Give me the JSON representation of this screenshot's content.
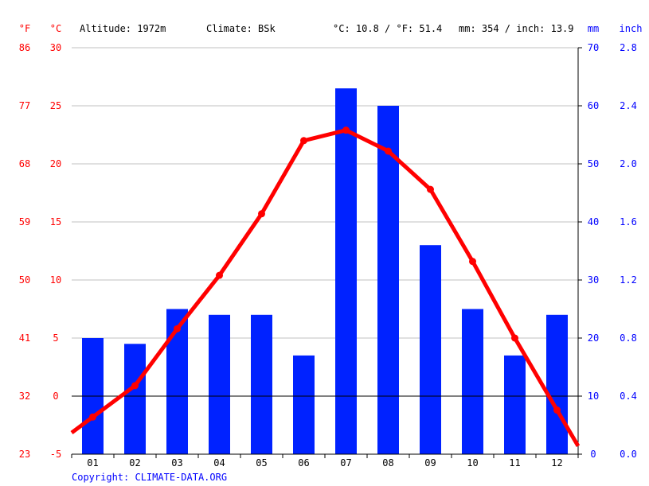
{
  "header": {
    "unit_f": "°F",
    "unit_c": "°C",
    "altitude": "Altitude: 1972m",
    "climate": "Climate: BSk",
    "avg_temp": "°C: 10.8 / °F: 51.4",
    "precip_total": "mm: 354 / inch: 13.9",
    "unit_mm": "mm",
    "unit_inch": "inch"
  },
  "copyright": "Copyright: CLIMATE-DATA.ORG",
  "colors": {
    "temperature": "#ff0000",
    "precipitation": "#0022ff",
    "grid": "#c0c0c0",
    "axis": "#000000"
  },
  "chart_data": {
    "type": "bar",
    "categories": [
      "01",
      "02",
      "03",
      "04",
      "05",
      "06",
      "07",
      "08",
      "09",
      "10",
      "11",
      "12"
    ],
    "series": [
      {
        "type": "bar",
        "axis": "right",
        "unit": "mm",
        "values": [
          20,
          19,
          25,
          24,
          24,
          17,
          63,
          60,
          36,
          25,
          17,
          24
        ]
      },
      {
        "type": "line",
        "axis": "left",
        "unit": "°C",
        "values": [
          -1.8,
          0.9,
          5.8,
          10.4,
          15.7,
          22.0,
          22.9,
          21.1,
          17.8,
          11.6,
          5.0,
          -1.2
        ]
      }
    ],
    "y_left": {
      "unit": "°C",
      "ylim": [
        -5,
        30
      ],
      "ticks": [
        30,
        25,
        20,
        15,
        10,
        5,
        0,
        -5
      ],
      "fahrenheit_ticks": [
        86,
        77,
        68,
        59,
        50,
        41,
        32,
        23
      ]
    },
    "y_right": {
      "unit": "mm",
      "ylim": [
        0,
        70
      ],
      "ticks": [
        70,
        60,
        50,
        40,
        30,
        20,
        10,
        0
      ],
      "inch_ticks": [
        "2.8",
        "2.4",
        "2.0",
        "1.6",
        "1.2",
        "0.8",
        "0.4",
        "0.0"
      ]
    },
    "grid": true,
    "legend": "none"
  }
}
